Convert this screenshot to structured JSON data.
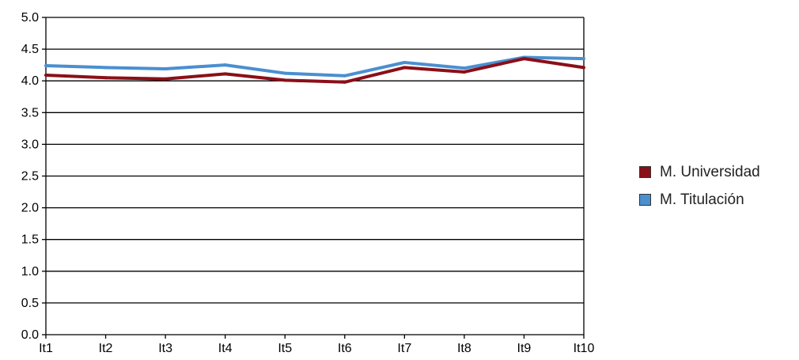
{
  "chart_data": {
    "type": "line",
    "title": "",
    "xlabel": "",
    "ylabel": "",
    "categories": [
      "It1",
      "It2",
      "It3",
      "It4",
      "It5",
      "It6",
      "It7",
      "It8",
      "It9",
      "It10"
    ],
    "ylim": [
      0,
      5
    ],
    "yticks": [
      "0.0",
      "0.5",
      "1.0",
      "1.5",
      "2.0",
      "2.5",
      "3.0",
      "3.5",
      "4.0",
      "4.5",
      "5.0"
    ],
    "grid": "horizontal",
    "legend_position": "right",
    "series": [
      {
        "name": "M. Universidad",
        "color": "#8b0f17",
        "values": [
          4.09,
          4.05,
          4.03,
          4.11,
          4.01,
          3.98,
          4.21,
          4.14,
          4.35,
          4.21
        ]
      },
      {
        "name": "M. Titulación",
        "color": "#4a8fd0",
        "values": [
          4.24,
          4.21,
          4.19,
          4.25,
          4.12,
          4.08,
          4.29,
          4.2,
          4.37,
          4.35
        ]
      }
    ]
  }
}
